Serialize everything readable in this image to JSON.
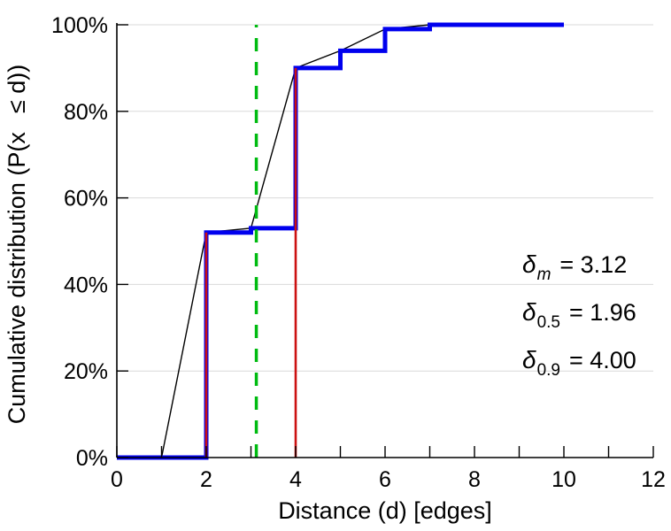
{
  "chart_data": {
    "type": "line",
    "title": "",
    "xlabel": "Distance (d) [edges]",
    "ylabel": "Cumulative distribution (P(x  ≤ d))",
    "xlim": [
      0,
      12
    ],
    "ylim": [
      0,
      100
    ],
    "x_major_ticks": [
      0,
      2,
      4,
      6,
      8,
      10,
      12
    ],
    "x_minor_ticks": [
      1,
      3,
      5,
      7,
      9,
      11
    ],
    "y_ticks": [
      0,
      20,
      40,
      60,
      80,
      100
    ],
    "y_tick_labels": [
      "0%",
      "20%",
      "40%",
      "60%",
      "80%",
      "100%"
    ],
    "grid": "horizontal",
    "grid_color": "#d9d9d9",
    "axis_color": "#000000",
    "series": [
      {
        "name": "linear-interpolation-line",
        "kind": "polyline",
        "color": "#000000",
        "width": 1.4,
        "points": [
          [
            1,
            0
          ],
          [
            2,
            52
          ],
          [
            3,
            53
          ],
          [
            4,
            90
          ],
          [
            5,
            94
          ],
          [
            6,
            99
          ],
          [
            7,
            100
          ]
        ]
      },
      {
        "name": "cdf-step-line",
        "kind": "polyline",
        "color": "#0000ee",
        "width": 5,
        "points": [
          [
            0,
            0
          ],
          [
            2,
            0
          ],
          [
            2,
            52
          ],
          [
            3,
            52
          ],
          [
            3,
            53
          ],
          [
            4,
            53
          ],
          [
            4,
            90
          ],
          [
            5,
            90
          ],
          [
            5,
            94
          ],
          [
            6,
            94
          ],
          [
            6,
            99
          ],
          [
            7,
            99
          ],
          [
            7,
            100
          ],
          [
            10,
            100
          ]
        ]
      },
      {
        "name": "median-marker-line",
        "kind": "vline",
        "color": "#cc1111",
        "width": 2.6,
        "x": 2,
        "y0": 0,
        "y1": 52
      },
      {
        "name": "p90-marker-line",
        "kind": "vline",
        "color": "#cc1111",
        "width": 2.6,
        "x": 4,
        "y0": 0,
        "y1": 90
      },
      {
        "name": "mean-dashed-line",
        "kind": "vline",
        "color": "#00bb11",
        "width": 3.5,
        "x": 3.12,
        "y0": 0,
        "y1": 100,
        "dash": "15,12"
      }
    ],
    "annotations": [
      {
        "symbol": "δ",
        "sub": "m",
        "value": "= 3.12"
      },
      {
        "symbol": "δ",
        "sub": "0.5",
        "value": "= 1.96"
      },
      {
        "symbol": "δ",
        "sub": "0.9",
        "value": "= 4.00"
      }
    ]
  }
}
